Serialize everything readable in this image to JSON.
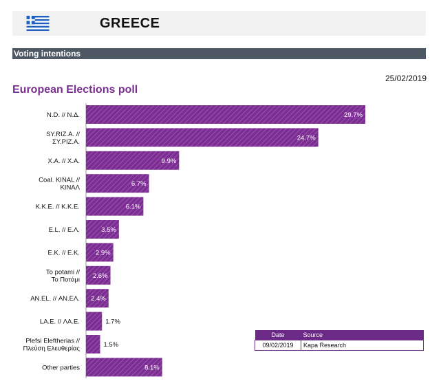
{
  "header": {
    "country": "GREECE",
    "flag_icon": "greece-flag-icon"
  },
  "section": {
    "title": "Voting intentions"
  },
  "date": "25/02/2019",
  "chart_title": "European Elections poll",
  "colors": {
    "bar": "#7b2d91",
    "bar_hatch": "#9a55b0",
    "accent": "#6b2a86",
    "section_bar": "#4d5864"
  },
  "chart_data": {
    "type": "bar",
    "orientation": "horizontal",
    "categories": [
      "N.D. // Ν.Δ.",
      "SY.RIZ.A. // ΣΥ.ΡΙΖ.Α.",
      "X.A. // Χ.Α.",
      "Coal. KINAL // ΚΙΝΑΛ",
      "K.K.E. // Κ.Κ.Ε.",
      "E.L. // Ε.Λ.",
      "E.K. // Ε.Κ.",
      "To potami // Το Ποτάμι",
      "AN.EL. // ΑΝ.ΕΛ.",
      "LA.E. // ΛΑ.Ε.",
      "Plefsi Eleftherias // Πλεύση Ελευθερίας",
      "Other parties"
    ],
    "values": [
      29.7,
      24.7,
      9.9,
      6.7,
      6.1,
      3.5,
      2.9,
      2.6,
      2.4,
      1.7,
      1.5,
      8.1
    ],
    "labels": [
      "29.7%",
      "24.7%",
      "9.9%",
      "6.7%",
      "6.1%",
      "3.5%",
      "2.9%",
      "2.6%",
      "2.4%",
      "1.7%",
      "1.5%",
      "8.1%"
    ],
    "title": "European Elections poll",
    "xlabel": "",
    "ylabel": ""
  },
  "source_table": {
    "headers": [
      "Date",
      "Source"
    ],
    "rows": [
      [
        "09/02/2019",
        "Kapa Research"
      ]
    ]
  }
}
